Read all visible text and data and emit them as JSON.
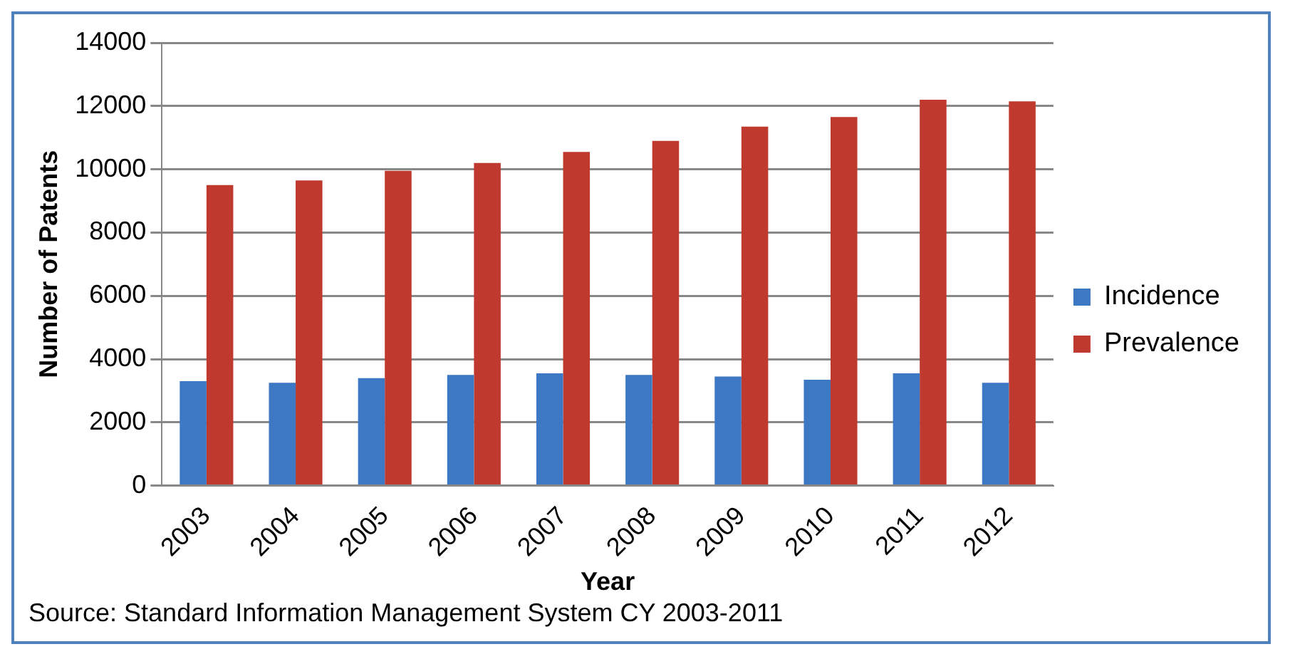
{
  "chart_data": {
    "type": "bar",
    "xlabel": "Year",
    "ylabel": "Number of Patents",
    "categories": [
      "2003",
      "2004",
      "2005",
      "2006",
      "2007",
      "2008",
      "2009",
      "2010",
      "2011",
      "2012"
    ],
    "series": [
      {
        "name": "Incidence",
        "color": "#3c78c3",
        "values": [
          3300,
          3250,
          3400,
          3500,
          3550,
          3500,
          3450,
          3350,
          3550,
          3250
        ]
      },
      {
        "name": "Prevalence",
        "color": "#c0392f",
        "values": [
          9500,
          9650,
          9950,
          10200,
          10550,
          10900,
          11350,
          11650,
          12200,
          12150
        ]
      }
    ],
    "ylim": [
      0,
      14000
    ],
    "yticks": [
      0,
      2000,
      4000,
      6000,
      8000,
      10000,
      12000,
      14000
    ],
    "grid": "y",
    "legend": "right",
    "annotations": [
      "Source: Standard Information Management System CY 2003-2011"
    ]
  }
}
